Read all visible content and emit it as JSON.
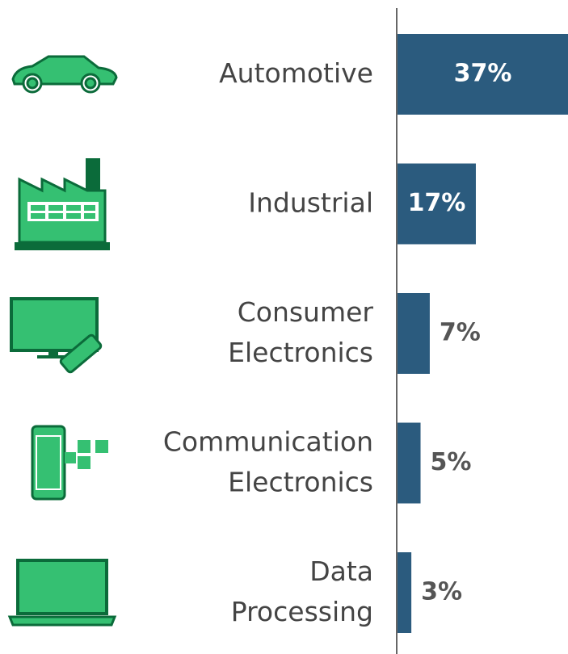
{
  "chart_data": {
    "type": "bar",
    "orientation": "horizontal",
    "categories": [
      "Automotive",
      "Industrial",
      "Consumer Electronics",
      "Communication Electronics",
      "Data Processing"
    ],
    "values": [
      37,
      17,
      7,
      5,
      3
    ],
    "value_labels": [
      "37%",
      "17%",
      "7%",
      "5%",
      "3%"
    ],
    "color": "#2b5b7e",
    "xlim": [
      0,
      37
    ]
  }
}
